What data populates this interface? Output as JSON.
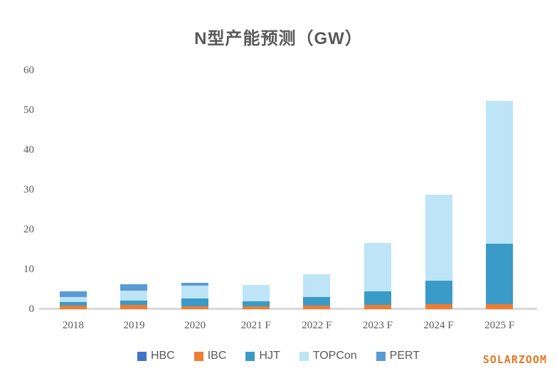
{
  "title": "N型产能预测（GW）",
  "watermark": "SOLARZOOM",
  "colors": {
    "title_text": "#595959",
    "axis_text": "#595959",
    "axis_line": "#d9d9d9",
    "watermark_text": "#e87722"
  },
  "chart_data": {
    "type": "bar",
    "stacked": true,
    "title": "N型产能预测（GW）",
    "xlabel": "",
    "ylabel": "",
    "ylim": [
      0,
      60
    ],
    "yticks": [
      0,
      10,
      20,
      30,
      40,
      50,
      60
    ],
    "grid": false,
    "legend_position": "bottom",
    "categories": [
      "2018",
      "2019",
      "2020",
      "2021 F",
      "2022 F",
      "2023 F",
      "2024 F",
      "2025 F"
    ],
    "series": [
      {
        "name": "HBC",
        "color": "#4472c4",
        "values": [
          0,
          0,
          0,
          0,
          0,
          0,
          0,
          0
        ]
      },
      {
        "name": "IBC",
        "color": "#ed7d31",
        "values": [
          0.9,
          1.0,
          0.7,
          0.7,
          0.9,
          1.0,
          1.2,
          1.2
        ]
      },
      {
        "name": "HJT",
        "color": "#3a9bc8",
        "values": [
          0.9,
          1.2,
          2.0,
          1.2,
          2.1,
          3.4,
          6.0,
          15.3
        ]
      },
      {
        "name": "TOPCon",
        "color": "#bde4f7",
        "values": [
          1.2,
          2.5,
          3.2,
          4.1,
          5.8,
          12.3,
          21.6,
          35.8
        ]
      },
      {
        "name": "PERT",
        "color": "#5b9bd5",
        "values": [
          1.5,
          1.6,
          0.7,
          0,
          0,
          0,
          0,
          0
        ]
      }
    ],
    "totals": [
      4.5,
      6.3,
      6.6,
      6.0,
      8.8,
      16.7,
      28.8,
      52.3
    ]
  }
}
